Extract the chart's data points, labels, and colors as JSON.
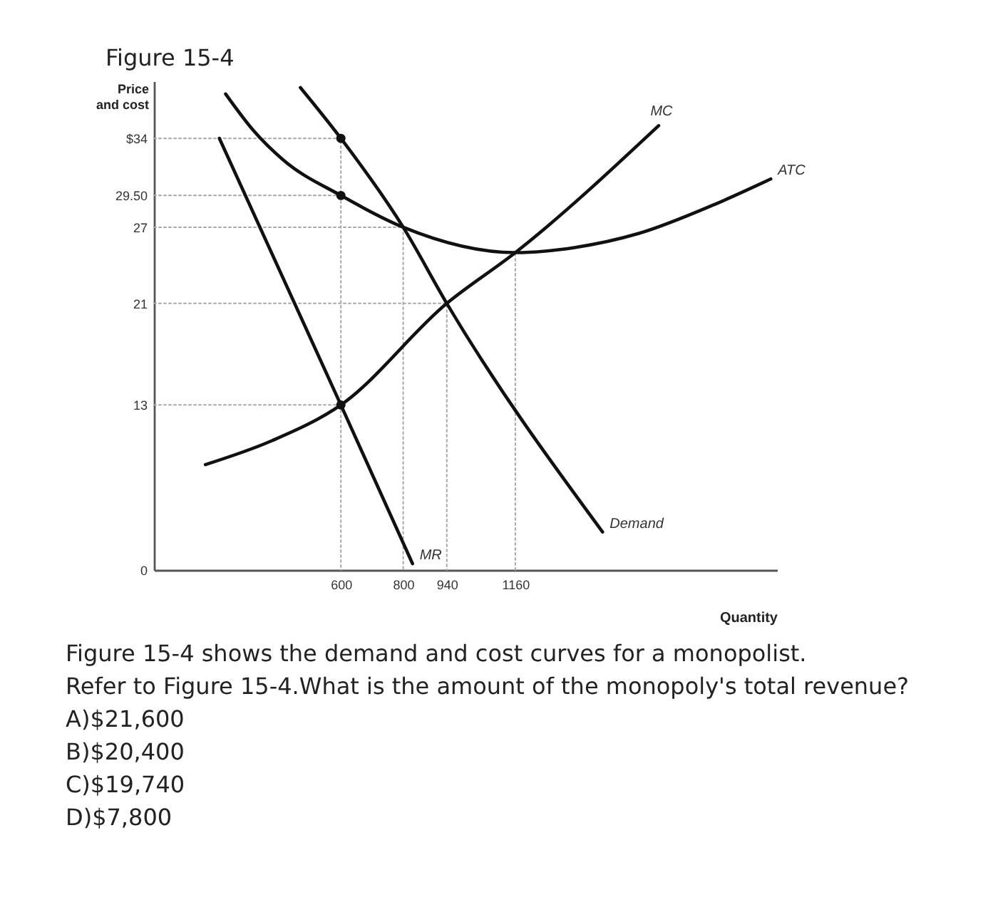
{
  "chart_data": {
    "type": "line",
    "title": "Figure 15-4",
    "xlabel": "Quantity",
    "ylabel": "Price and cost",
    "xlim": [
      0,
      2000
    ],
    "ylim": [
      0,
      38.5
    ],
    "xticks": [
      600,
      800,
      940,
      1160
    ],
    "yticks": [
      0,
      13,
      21,
      27,
      {
        "value": 29.5,
        "label": "29.50"
      },
      {
        "value": 34,
        "label": "$34"
      }
    ],
    "grid": false,
    "legend": false,
    "series": [
      {
        "color": "#a8a8a8",
        "line_style": "dotted",
        "x": [
          0,
          600,
          600
        ],
        "values": [
          34,
          34,
          0
        ]
      },
      {
        "color": "#a8a8a8",
        "line_style": "dotted",
        "x": [
          0,
          600
        ],
        "values": [
          29.5,
          29.5
        ]
      },
      {
        "color": "#a8a8a8",
        "line_style": "dotted",
        "x": [
          0,
          800,
          800
        ],
        "values": [
          27,
          27,
          0
        ]
      },
      {
        "color": "#a8a8a8",
        "line_style": "dotted",
        "x": [
          0,
          940,
          940
        ],
        "values": [
          21,
          21,
          0
        ]
      },
      {
        "color": "#a8a8a8",
        "line_style": "dotted",
        "x": [
          0,
          600
        ],
        "values": [
          13,
          13
        ]
      },
      {
        "color": "#a8a8a8",
        "line_style": "dotted",
        "x": [
          1160,
          1160
        ],
        "values": [
          0,
          25
        ]
      },
      {
        "name": "MR",
        "color": "#111111",
        "x": [
          210,
          600,
          830
        ],
        "values": [
          34,
          13,
          0.5
        ]
      },
      {
        "name": "Demand",
        "color": "#111111",
        "x": [
          470,
          600,
          800,
          940,
          1440
        ],
        "values": [
          38,
          34,
          27,
          21,
          3
        ]
      },
      {
        "name": "ATC",
        "color": "#111111",
        "x": [
          230,
          320,
          415,
          600,
          800,
          1160,
          1350,
          1555,
          1800,
          1980
        ],
        "values": [
          37.5,
          34.6,
          32.3,
          29.5,
          27,
          25,
          25.4,
          26.5,
          28.8,
          30.8
        ]
      },
      {
        "name": "MC",
        "color": "#111111",
        "x": [
          165,
          380,
          600,
          940,
          1160,
          1620
        ],
        "values": [
          8.3,
          10.2,
          13,
          21,
          25,
          35
        ]
      },
      {
        "type": "scatter",
        "color": "#111111",
        "marker": "circle",
        "x": [
          600,
          600,
          600
        ],
        "values": [
          34,
          29.5,
          13
        ]
      }
    ],
    "annotations": [
      "Figure 15-4 shows the demand and cost curves for a monopolist.",
      "Refer to Figure 15-4.What is the amount of the monopoly's total revenue?",
      "A)$21,600",
      "B)$20,400",
      "C)$19,740",
      "D)$7,800"
    ]
  }
}
